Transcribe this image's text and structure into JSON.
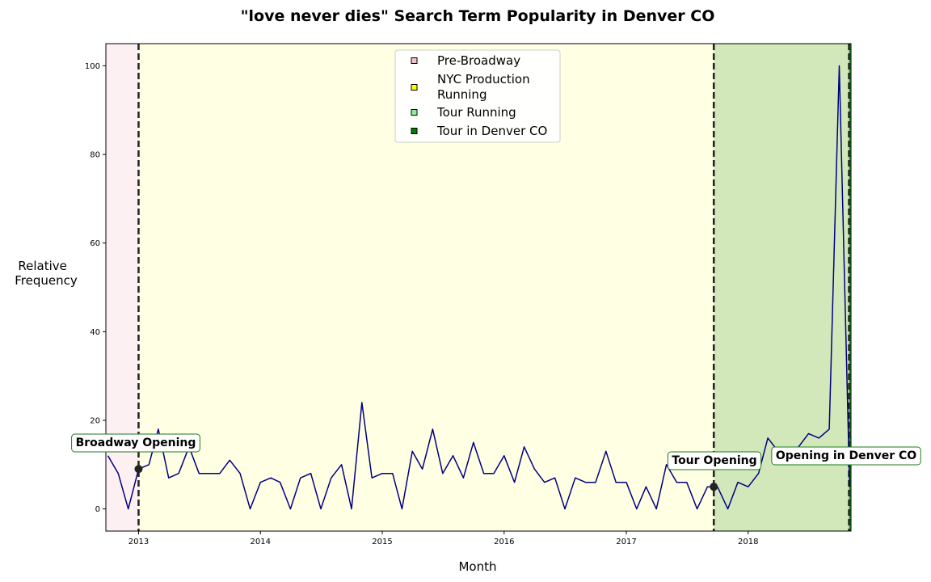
{
  "chart_data": {
    "type": "line",
    "title": "\"love never dies\" Search Term Popularity in Denver CO",
    "xlabel": "Month",
    "ylabel": [
      "Relative",
      "Frequency"
    ],
    "xlim": [
      "2012-09-25",
      "2018-11-05"
    ],
    "ylim": [
      -5,
      105
    ],
    "xticks": [
      {
        "date": "2013-01-01",
        "label": "2013"
      },
      {
        "date": "2014-01-01",
        "label": "2014"
      },
      {
        "date": "2015-01-01",
        "label": "2015"
      },
      {
        "date": "2016-01-01",
        "label": "2016"
      },
      {
        "date": "2017-01-01",
        "label": "2017"
      },
      {
        "date": "2018-01-01",
        "label": "2018"
      }
    ],
    "yticks": [
      0,
      20,
      40,
      60,
      80,
      100
    ],
    "phases": [
      {
        "name": "Pre-Broadway",
        "start": "2012-09-25",
        "end": "2013-01-01",
        "color": "#fdf0f3",
        "marker_color": "#f4c2cc"
      },
      {
        "name": "NYC Production\nRunning",
        "start": "2013-01-01",
        "end": "2017-09-20",
        "color": "#ffffe3",
        "marker_color": "#ffff00"
      },
      {
        "name": "Tour Running",
        "start": "2017-09-20",
        "end": "2018-10-30",
        "color": "#d2e8bb",
        "marker_color": "#90ee90"
      },
      {
        "name": "Tour in Denver CO",
        "start": "2018-10-30",
        "end": "2018-11-05",
        "color": "#2f9e2f",
        "marker_color": "#008000"
      }
    ],
    "series": [
      {
        "color": "#000080",
        "x": [
          "2012-10-01",
          "2012-11-01",
          "2012-12-01",
          "2013-01-01",
          "2013-02-01",
          "2013-03-01",
          "2013-04-01",
          "2013-05-01",
          "2013-06-01",
          "2013-07-01",
          "2013-08-01",
          "2013-09-01",
          "2013-10-01",
          "2013-11-01",
          "2013-12-01",
          "2014-01-01",
          "2014-02-01",
          "2014-03-01",
          "2014-04-01",
          "2014-05-01",
          "2014-06-01",
          "2014-07-01",
          "2014-08-01",
          "2014-09-01",
          "2014-10-01",
          "2014-11-01",
          "2014-12-01",
          "2015-01-01",
          "2015-02-01",
          "2015-03-01",
          "2015-04-01",
          "2015-05-01",
          "2015-06-01",
          "2015-07-01",
          "2015-08-01",
          "2015-09-01",
          "2015-10-01",
          "2015-11-01",
          "2015-12-01",
          "2016-01-01",
          "2016-02-01",
          "2016-03-01",
          "2016-04-01",
          "2016-05-01",
          "2016-06-01",
          "2016-07-01",
          "2016-08-01",
          "2016-09-01",
          "2016-10-01",
          "2016-11-01",
          "2016-12-01",
          "2017-01-01",
          "2017-02-01",
          "2017-03-01",
          "2017-04-01",
          "2017-05-01",
          "2017-06-01",
          "2017-07-01",
          "2017-08-01",
          "2017-09-01",
          "2017-10-01",
          "2017-11-01",
          "2017-12-01",
          "2018-01-01",
          "2018-02-01",
          "2018-03-01",
          "2018-04-01",
          "2018-05-01",
          "2018-06-01",
          "2018-07-01",
          "2018-08-01",
          "2018-09-01",
          "2018-10-01",
          "2018-11-01"
        ],
        "y": [
          12,
          8,
          0,
          9,
          10,
          18,
          7,
          8,
          14,
          8,
          8,
          8,
          11,
          8,
          0,
          6,
          7,
          6,
          0,
          7,
          8,
          0,
          7,
          10,
          0,
          24,
          7,
          8,
          8,
          0,
          13,
          9,
          18,
          8,
          12,
          7,
          15,
          8,
          8,
          12,
          6,
          14,
          9,
          6,
          7,
          0,
          7,
          6,
          6,
          13,
          6,
          6,
          0,
          5,
          0,
          10,
          6,
          6,
          0,
          5,
          5,
          0,
          6,
          5,
          8,
          16,
          13,
          12,
          14,
          17,
          16,
          18,
          100,
          5
        ]
      }
    ],
    "markers": [
      {
        "label": "Broadway Opening",
        "date": "2013-01-01",
        "value": 9
      },
      {
        "label": "Tour Opening",
        "date": "2017-09-20",
        "value": 5
      },
      {
        "label": "Opening in Denver CO",
        "date": "2018-10-30",
        "value": null
      }
    ],
    "legend_position": "upper center",
    "grid": false
  }
}
